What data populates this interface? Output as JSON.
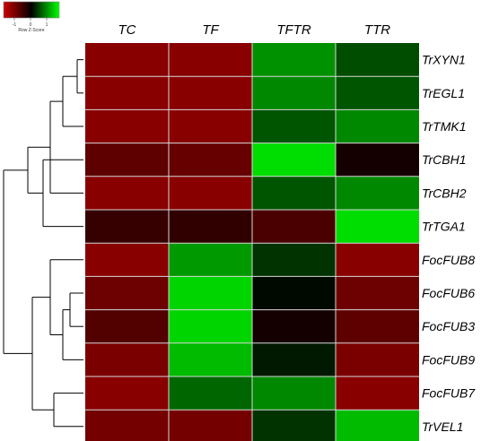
{
  "chart_data": {
    "type": "heatmap",
    "columns": [
      "TC",
      "TF",
      "TFTR",
      "TTR"
    ],
    "rows": [
      "TrXYN1",
      "TrEGL1",
      "TrTMK1",
      "TrCBH1",
      "TrCBH2",
      "TrTGA1",
      "FocFUB8",
      "FocFUB6",
      "FocFUB3",
      "FocFUB9",
      "FocFUB7",
      "TrVEL1"
    ],
    "values": [
      [
        -1.0,
        -1.0,
        0.85,
        0.45
      ],
      [
        -1.0,
        -1.0,
        0.8,
        0.5
      ],
      [
        -1.0,
        -1.0,
        0.5,
        0.8
      ],
      [
        -0.7,
        -0.75,
        1.3,
        -0.15
      ],
      [
        -1.0,
        -1.0,
        0.5,
        0.8
      ],
      [
        -0.4,
        -0.35,
        -0.55,
        1.3
      ],
      [
        -1.0,
        0.9,
        0.3,
        -1.0
      ],
      [
        -0.8,
        1.25,
        0.05,
        -0.8
      ],
      [
        -0.6,
        1.25,
        -0.15,
        -0.7
      ],
      [
        -0.9,
        1.1,
        0.15,
        -0.9
      ],
      [
        -1.0,
        0.6,
        0.8,
        -1.0
      ],
      [
        -0.85,
        -0.85,
        0.3,
        1.1
      ]
    ],
    "color_key": {
      "title": "Row Z-Score",
      "ticks": [
        "-1",
        "0",
        "1"
      ],
      "low_color": "#cc0000",
      "mid_color": "#000000",
      "high_color": "#00ff00"
    },
    "row_dendrogram": true
  }
}
